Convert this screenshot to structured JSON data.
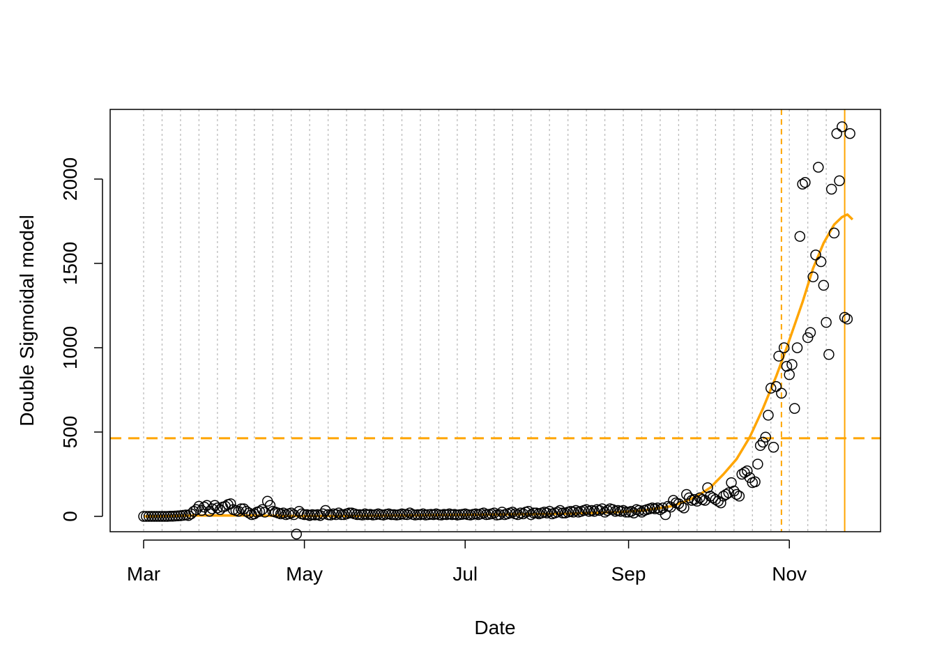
{
  "chart_data": {
    "type": "scatter",
    "x_label": "Date",
    "y_label": "Double Sigmoidal model",
    "xlim": [
      -12.7,
      279.6
    ],
    "ylim": [
      -91,
      2413
    ],
    "xticks": [
      {
        "value": 0,
        "label": "Mar"
      },
      {
        "value": 61,
        "label": "May"
      },
      {
        "value": 122,
        "label": "Jul"
      },
      {
        "value": 184,
        "label": "Sep"
      },
      {
        "value": 245,
        "label": "Nov"
      }
    ],
    "yticks": [
      0,
      500,
      1000,
      1500,
      2000
    ],
    "x_grid": [
      0,
      7,
      14,
      21,
      28,
      35,
      42,
      49,
      56,
      63,
      70,
      77,
      84,
      91,
      98,
      105,
      112,
      119,
      126,
      133,
      140,
      147,
      154,
      161,
      168,
      175,
      182,
      189,
      196,
      203,
      210,
      217,
      224,
      231,
      238,
      245,
      252,
      259
    ],
    "reference_lines": [
      {
        "axis": "y",
        "value": 463,
        "style": "dashed",
        "color": "#FFA500"
      },
      {
        "axis": "x",
        "value": 242,
        "style": "dashed",
        "color": "#FFA500"
      },
      {
        "axis": "x",
        "value": 266,
        "style": "solid",
        "color": "#FFA500"
      }
    ],
    "series": [
      {
        "type": "scatter",
        "color": "#000000",
        "x": [
          0,
          1,
          2,
          3,
          4,
          5,
          6,
          7,
          8,
          9,
          10,
          11,
          12,
          13,
          14,
          15,
          16,
          17,
          18,
          19,
          20,
          21,
          22,
          23,
          24,
          25,
          26,
          27,
          28,
          29,
          30,
          31,
          32,
          33,
          34,
          35,
          36,
          37,
          38,
          39,
          40,
          41,
          42,
          43,
          44,
          45,
          46,
          47,
          48,
          49,
          50,
          51,
          52,
          53,
          54,
          55,
          56,
          57,
          58,
          59,
          60,
          61,
          62,
          63,
          64,
          65,
          66,
          67,
          68,
          69,
          70,
          71,
          72,
          73,
          74,
          75,
          76,
          77,
          78,
          79,
          80,
          81,
          82,
          83,
          84,
          85,
          86,
          87,
          88,
          89,
          90,
          91,
          92,
          93,
          94,
          95,
          96,
          97,
          98,
          99,
          100,
          101,
          102,
          103,
          104,
          105,
          106,
          107,
          108,
          109,
          110,
          111,
          112,
          113,
          114,
          115,
          116,
          117,
          118,
          119,
          120,
          121,
          122,
          123,
          124,
          125,
          126,
          127,
          128,
          129,
          130,
          131,
          132,
          133,
          134,
          135,
          136,
          137,
          138,
          139,
          140,
          141,
          142,
          143,
          144,
          145,
          146,
          147,
          148,
          149,
          150,
          151,
          152,
          153,
          154,
          155,
          156,
          157,
          158,
          159,
          160,
          161,
          162,
          163,
          164,
          165,
          166,
          167,
          168,
          169,
          170,
          171,
          172,
          173,
          174,
          175,
          176,
          177,
          178,
          179,
          180,
          181,
          182,
          183,
          184,
          185,
          186,
          187,
          188,
          189,
          190,
          191,
          192,
          193,
          194,
          195,
          196,
          197,
          198,
          199,
          200,
          201,
          202,
          203,
          204,
          205,
          206,
          207,
          208,
          209,
          210,
          211,
          212,
          213,
          214,
          215,
          216,
          217,
          218,
          219,
          220,
          221,
          222,
          223,
          224,
          225,
          226,
          227,
          228,
          229,
          230,
          231,
          232,
          233,
          234,
          235,
          236,
          237,
          238,
          239,
          240,
          241,
          242,
          243,
          244,
          245,
          246,
          247,
          248,
          249,
          250,
          251,
          252,
          253,
          254,
          255,
          256,
          257,
          258,
          259,
          260,
          261,
          262,
          263,
          264,
          265,
          266,
          267,
          268
        ],
        "values": [
          0,
          0,
          0,
          0,
          0,
          0,
          0,
          0,
          0,
          0,
          1,
          1,
          2,
          3,
          4,
          6,
          8,
          5,
          15,
          30,
          40,
          60,
          35,
          55,
          65,
          30,
          45,
          65,
          50,
          40,
          55,
          60,
          70,
          75,
          40,
          35,
          30,
          45,
          45,
          30,
          20,
          10,
          15,
          25,
          30,
          40,
          25,
          90,
          65,
          30,
          25,
          20,
          15,
          20,
          10,
          15,
          20,
          10,
          -105,
          30,
          15,
          10,
          10,
          5,
          10,
          8,
          10,
          5,
          15,
          35,
          10,
          8,
          15,
          10,
          20,
          10,
          10,
          15,
          20,
          20,
          15,
          10,
          10,
          8,
          15,
          10,
          12,
          8,
          10,
          15,
          10,
          8,
          12,
          15,
          10,
          10,
          8,
          10,
          15,
          12,
          10,
          20,
          12,
          8,
          10,
          10,
          15,
          8,
          10,
          12,
          10,
          15,
          10,
          8,
          12,
          10,
          15,
          10,
          12,
          8,
          10,
          12,
          15,
          10,
          8,
          12,
          15,
          10,
          15,
          20,
          10,
          12,
          15,
          20,
          8,
          10,
          25,
          10,
          15,
          20,
          25,
          15,
          10,
          20,
          15,
          25,
          30,
          10,
          20,
          20,
          15,
          20,
          25,
          20,
          30,
          15,
          20,
          25,
          35,
          20,
          20,
          25,
          30,
          25,
          35,
          25,
          30,
          35,
          40,
          30,
          35,
          30,
          40,
          35,
          45,
          25,
          35,
          45,
          40,
          30,
          35,
          30,
          35,
          25,
          25,
          30,
          20,
          40,
          35,
          25,
          35,
          40,
          45,
          50,
          45,
          50,
          40,
          50,
          10,
          60,
          55,
          95,
          80,
          75,
          60,
          50,
          130,
          110,
          95,
          100,
          90,
          110,
          100,
          95,
          170,
          120,
          110,
          100,
          90,
          80,
          120,
          130,
          140,
          200,
          150,
          130,
          120,
          250,
          260,
          270,
          230,
          200,
          205,
          310,
          420,
          440,
          470,
          600,
          760,
          410,
          770,
          950,
          730,
          1000,
          890,
          840,
          900,
          640,
          1000,
          1660,
          1970,
          1980,
          1060,
          1090,
          1420,
          1550,
          2070,
          1510,
          1370,
          1150,
          960,
          1940,
          1680,
          2270,
          1990,
          2310,
          1180,
          1170,
          2270
        ]
      },
      {
        "type": "line",
        "color": "#FFA500",
        "x": [
          0,
          20,
          40,
          60,
          80,
          100,
          120,
          140,
          160,
          180,
          190,
          200,
          205,
          210,
          215,
          220,
          225,
          230,
          235,
          240,
          244,
          250,
          254,
          258,
          262,
          265,
          267,
          269
        ],
        "values": [
          0,
          5,
          5,
          2,
          3,
          5,
          8,
          12,
          15,
          25,
          35,
          60,
          85,
          120,
          170,
          250,
          340,
          470,
          640,
          830,
          1000,
          1270,
          1470,
          1620,
          1730,
          1775,
          1790,
          1760
        ]
      }
    ]
  }
}
